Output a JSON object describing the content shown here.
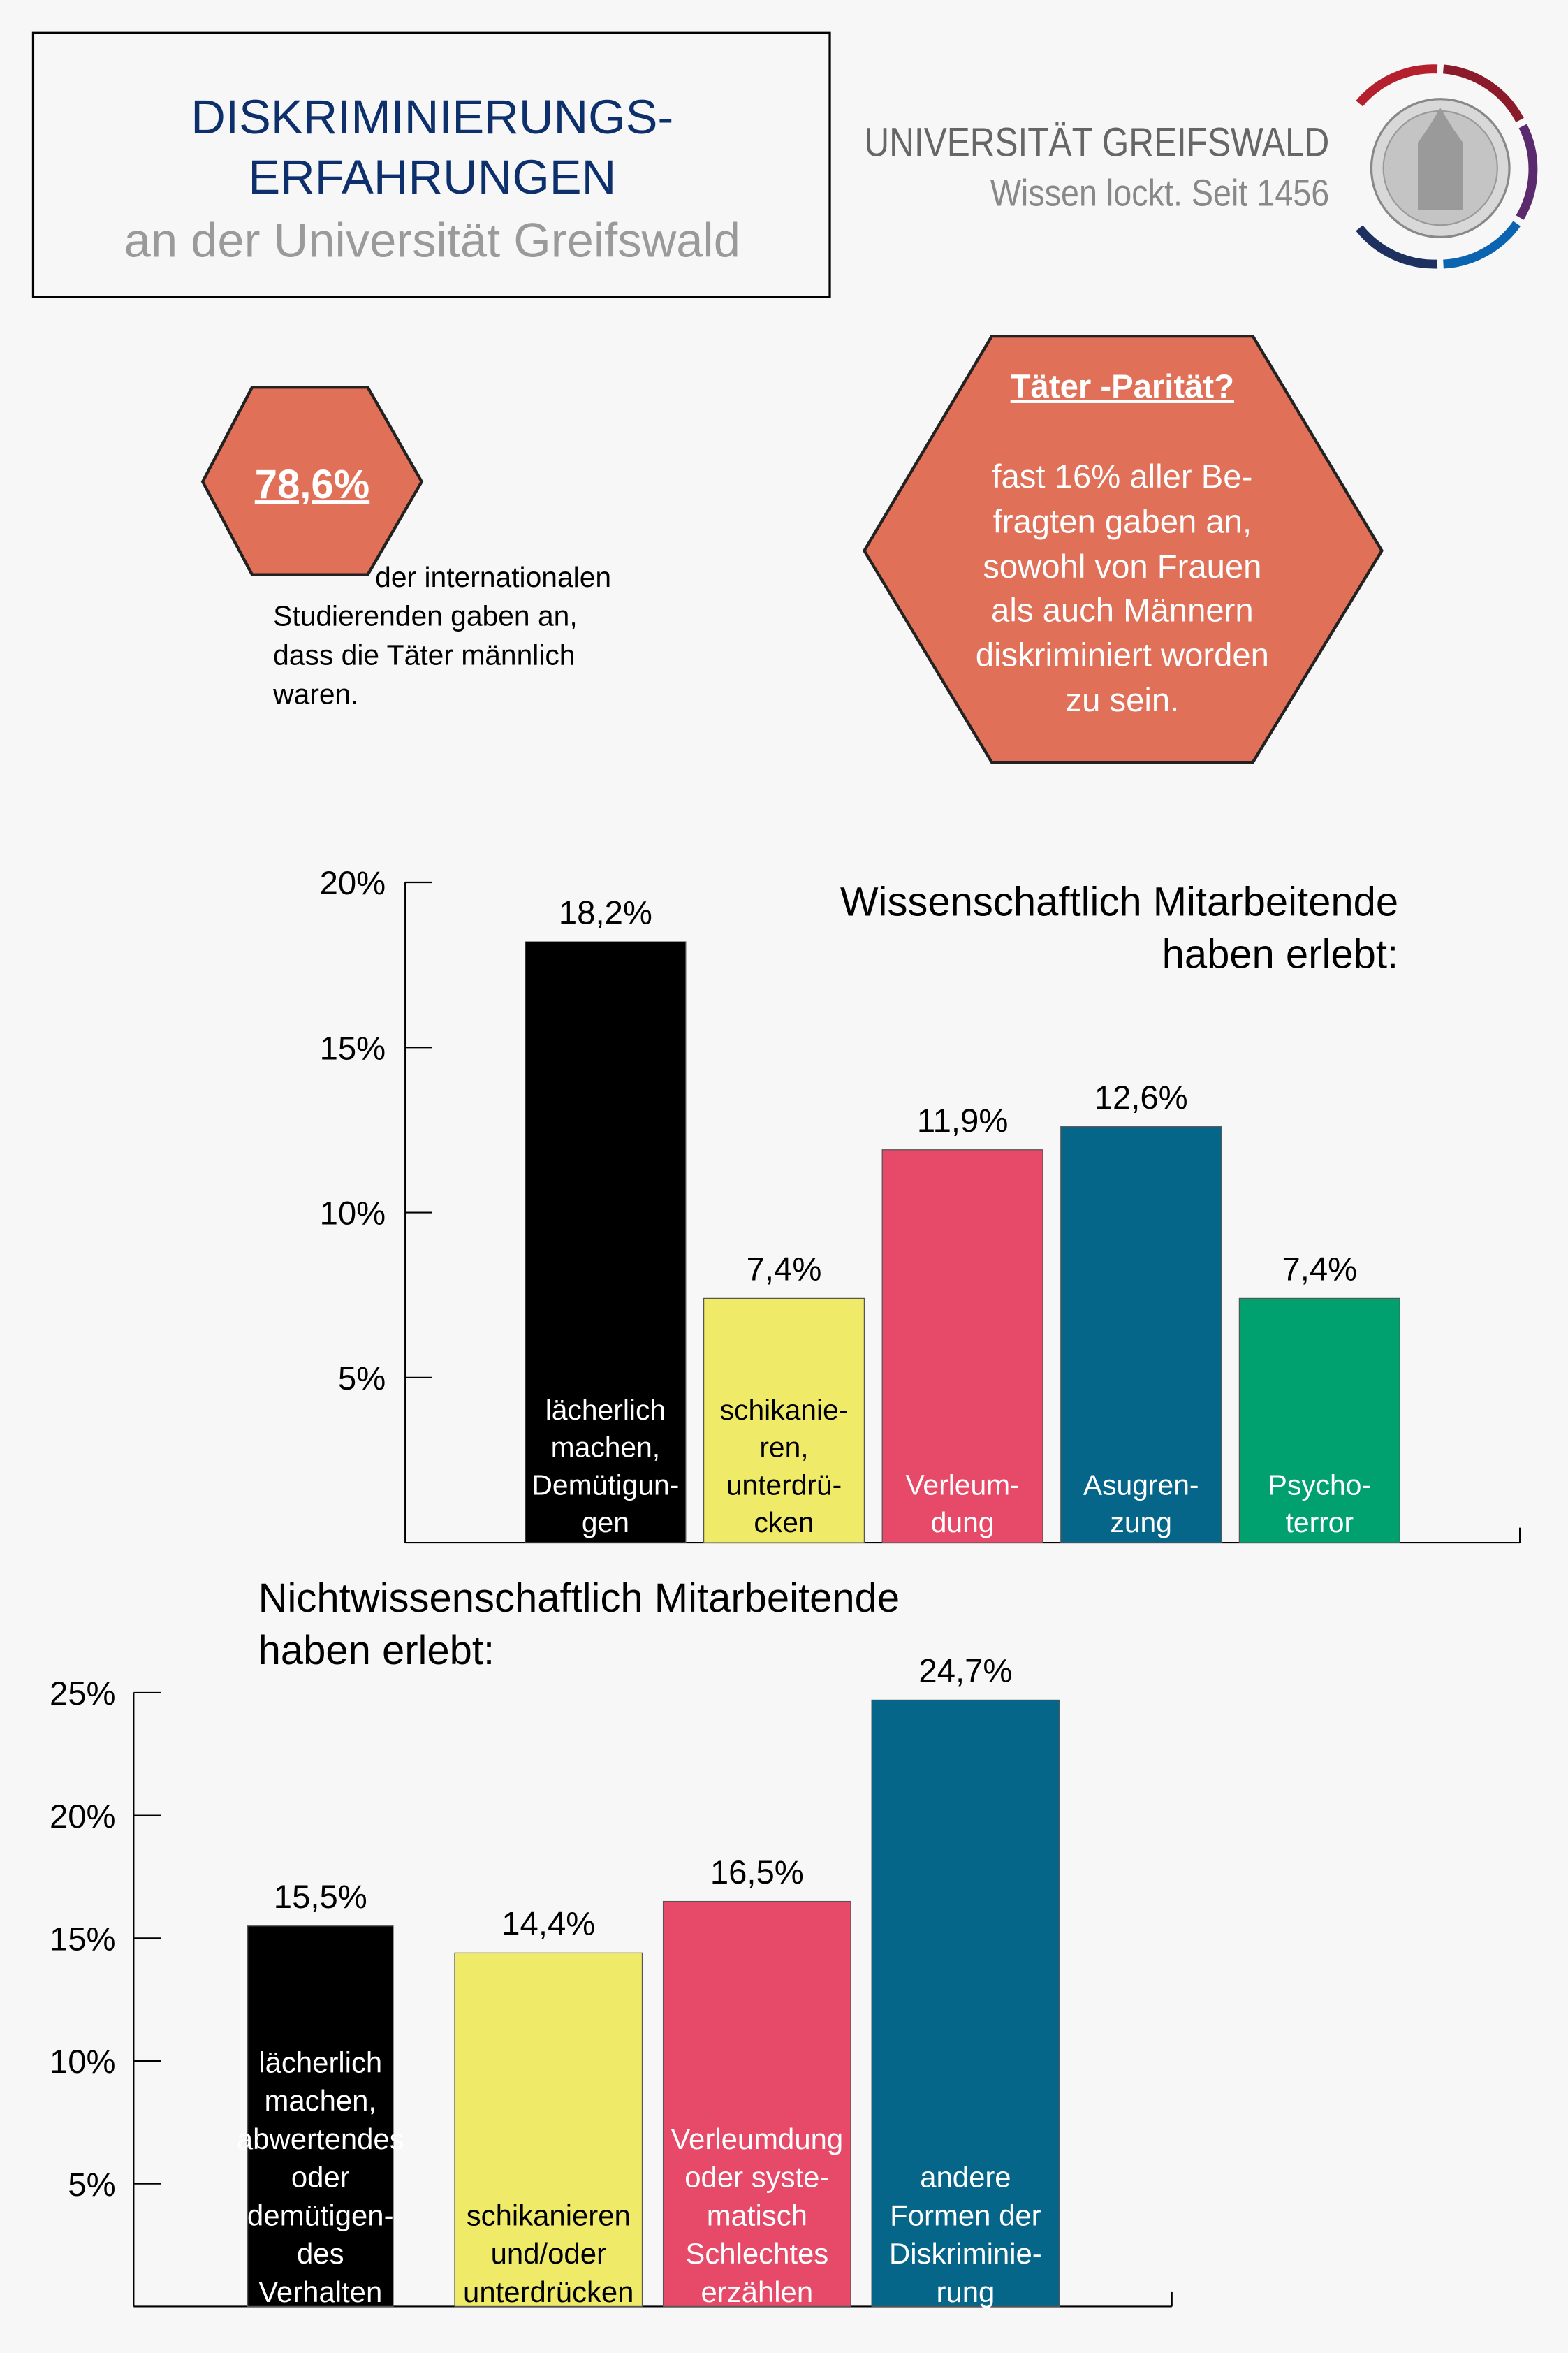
{
  "header": {
    "title_lines": [
      "DISKRIMINIERUNGS-",
      "ERFAHRUNGEN",
      "an der Universität Greifswald"
    ],
    "title_color": "#0d2f6b",
    "subtitle_color": "#9a9a9a"
  },
  "logo": {
    "name": "UNIVERSITÄT GREIFSWALD",
    "tagline": "Wissen lockt. Seit 1456",
    "ring_colors": [
      "#b5202e",
      "#8b1a2b",
      "#5b2a6e",
      "#0a64b0",
      "#1e3060"
    ]
  },
  "fact1": {
    "value": "78,6%",
    "caption_lines": [
      "der internationalen",
      "Studierenden gaben an,",
      "dass die Täter männlich",
      "waren."
    ],
    "color": "#e07058"
  },
  "fact2": {
    "title": "Täter -Parität?",
    "lines": [
      "fast 16% aller Be-",
      "fragten gaben an,",
      "sowohl von Frauen",
      "als auch Männern",
      "diskriminiert worden",
      "zu sein."
    ],
    "color": "#e07058"
  },
  "chart_data": [
    {
      "type": "bar",
      "title": "Wissenschaftlich Mitarbeitende haben erlebt:",
      "title_lines": [
        "Wissenschaftlich Mitarbeitende",
        "haben erlebt:"
      ],
      "ylim": [
        0,
        20
      ],
      "yticks": [
        "5%",
        "10%",
        "15%",
        "20%"
      ],
      "grid": false,
      "categories": [
        [
          "lächerlich",
          "machen,",
          "Demütigun-",
          "gen"
        ],
        [
          "schikanie-",
          "ren,",
          "unterdrü-",
          "cken"
        ],
        [
          "Verleum-",
          "dung"
        ],
        [
          "Asugren-",
          "zung"
        ],
        [
          "Psycho-",
          "terror"
        ]
      ],
      "values": [
        18.2,
        7.4,
        11.9,
        12.6,
        7.4
      ],
      "value_labels": [
        "18,2%",
        "7,4%",
        "11,9%",
        "12,6%",
        "7,4%"
      ],
      "colors": [
        "#000000",
        "#efea68",
        "#e64a68",
        "#05668a",
        "#00a06f"
      ],
      "label_colors": [
        "#ffffff",
        "#000000",
        "#ffffff",
        "#ffffff",
        "#ffffff"
      ]
    },
    {
      "type": "bar",
      "title": "Nichtwissenschaftlich Mitarbeitende haben erlebt:",
      "title_lines": [
        "Nichtwissenschaftlich Mitarbeitende",
        "haben erlebt:"
      ],
      "ylim": [
        0,
        25
      ],
      "yticks": [
        "5%",
        "10%",
        "15%",
        "20%",
        "25%"
      ],
      "grid": false,
      "categories": [
        [
          "lächerlich",
          "machen,",
          "abwertendes",
          "oder",
          "demütigen-",
          "des",
          "Verhalten"
        ],
        [
          "schikanieren",
          "und/oder",
          "unterdrücken"
        ],
        [
          "Verleumdung",
          "oder syste-",
          "matisch",
          "Schlechtes",
          "erzählen"
        ],
        [
          "andere",
          "Formen der",
          "Diskriminie-",
          "rung"
        ]
      ],
      "values": [
        15.5,
        14.4,
        16.5,
        24.7
      ],
      "value_labels": [
        "15,5%",
        "14,4%",
        "16,5%",
        "24,7%"
      ],
      "colors": [
        "#000000",
        "#efea68",
        "#e64a68",
        "#05668a"
      ],
      "label_colors": [
        "#ffffff",
        "#000000",
        "#ffffff",
        "#ffffff"
      ]
    }
  ]
}
